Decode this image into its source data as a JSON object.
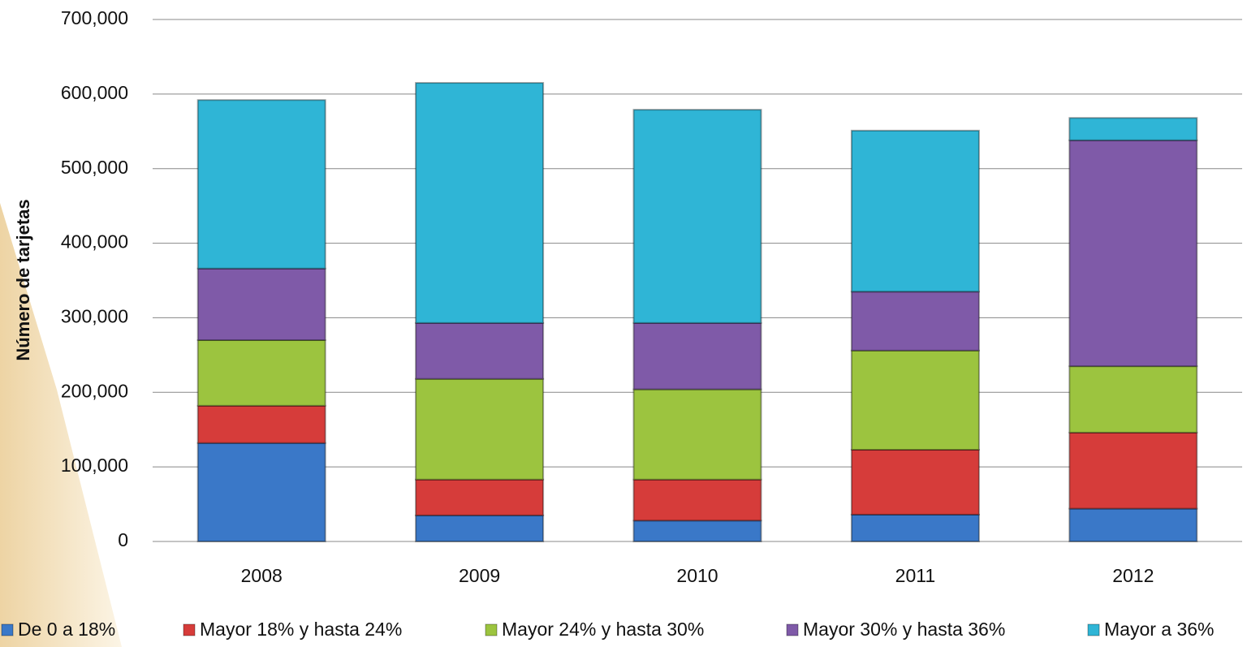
{
  "chart_data": {
    "type": "bar",
    "stacked": true,
    "y_label": "Número de tarjetas",
    "categories": [
      "2008",
      "2009",
      "2010",
      "2011",
      "2012"
    ],
    "series": [
      {
        "name": "De 0 a 18%",
        "color": "#3a78c8",
        "values": [
          132000,
          35000,
          28000,
          36000,
          44000
        ]
      },
      {
        "name": "Mayor 18% y hasta 24%",
        "color": "#d63c3a",
        "values": [
          50000,
          48000,
          55000,
          87000,
          102000
        ]
      },
      {
        "name": "Mayor 24% y hasta 30%",
        "color": "#9cc43f",
        "values": [
          88000,
          135000,
          121000,
          133000,
          89000
        ]
      },
      {
        "name": "Mayor 30% y hasta 36%",
        "color": "#7f5aa8",
        "values": [
          96000,
          75000,
          89000,
          79000,
          303000
        ]
      },
      {
        "name": "Mayor a 36%",
        "color": "#2fb5d6",
        "values": [
          226000,
          322000,
          286000,
          216000,
          30000
        ]
      }
    ],
    "ylim": [
      0,
      700000
    ],
    "yticks": [
      0,
      {
        "value": 100000,
        "label": "100,000"
      },
      {
        "value": 200000,
        "label": "200,000"
      },
      {
        "value": 300000,
        "label": "300,000"
      },
      {
        "value": 400000,
        "label": "400,000"
      },
      {
        "value": 500000,
        "label": "500,000"
      },
      {
        "value": 600000,
        "label": "600,000"
      },
      {
        "value": 700000,
        "label": "700,000"
      }
    ],
    "grid": true,
    "legend": "bottom"
  }
}
